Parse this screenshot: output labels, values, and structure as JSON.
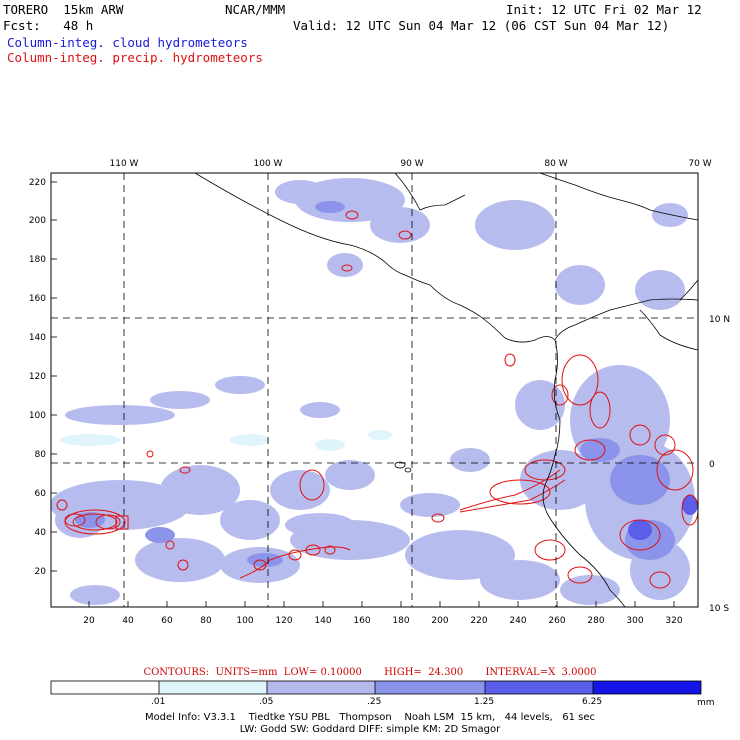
{
  "header": {
    "model": "TORERO  15km ARW",
    "fcst": "Fcst:   48 h",
    "org": "NCAR/MMM",
    "init": "Init: 12 UTC Fri 02 Mar 12",
    "valid": "Valid: 12 UTC Sun 04 Mar 12 (06 CST Sun 04 Mar 12)",
    "field1": "Column-integ. cloud hydrometeors",
    "field2": "Column-integ. precip. hydrometeors"
  },
  "axes": {
    "top_ticks": [
      "110 W",
      "100 W",
      "90 W",
      "80 W",
      "70 W"
    ],
    "right_ticks": [
      "10 N",
      "0",
      "10 S"
    ],
    "left_ticks": [
      "220",
      "200",
      "180",
      "160",
      "140",
      "120",
      "100",
      "80",
      "60",
      "40",
      "20"
    ],
    "bottom_ticks": [
      "20",
      "40",
      "60",
      "80",
      "100",
      "120",
      "140",
      "160",
      "180",
      "200",
      "220",
      "240",
      "260",
      "280",
      "300",
      "320"
    ]
  },
  "contours": {
    "label": "CONTOURS:  UNITS=mm  LOW= 0.10000       HIGH=  24.300       INTERVAL=X  3.0000"
  },
  "colorbar": {
    "labels": [
      ".01",
      ".05",
      ".25",
      "1.25",
      "6.25"
    ],
    "unit": "mm",
    "colors": [
      "#ffffff",
      "#dff5fb",
      "#b4b9ee",
      "#8c93ea",
      "#5b5ee8",
      "#2e2ee8",
      "#1414e6"
    ]
  },
  "footer": {
    "line1": "Model Info: V3.3.1    Tiedtke YSU PBL   Thompson    Noah LSM  15 km,   44 levels,   61 sec",
    "line2": "LW: Godd SW: Goddard DIFF: simple KM: 2D Smagor"
  }
}
